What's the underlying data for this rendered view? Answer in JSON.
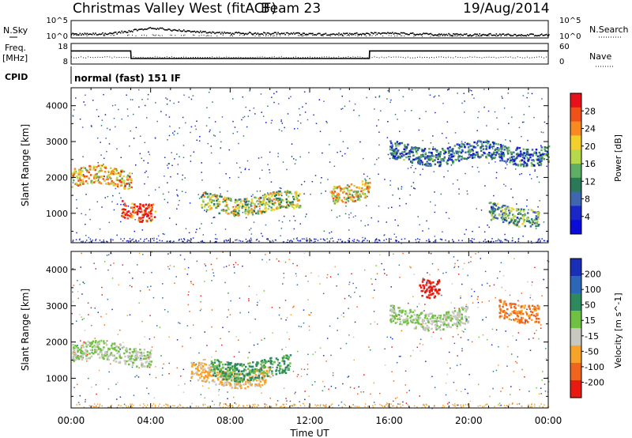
{
  "header": {
    "title": "Christmas Valley West (fitACF)",
    "beam": "Beam 23",
    "date": "19/Aug/2014"
  },
  "noise_panel": {
    "left_label": "N.Sky",
    "right_label": "N.Search",
    "left_ticks": [
      "10^5",
      "10^0"
    ],
    "right_ticks": [
      "10^5",
      "10^0"
    ]
  },
  "freq_panel": {
    "left_label_1": "Freq.",
    "left_label_2": "[MHz]",
    "right_label": "Nave",
    "left_ticks": [
      "18",
      "8"
    ],
    "right_ticks": [
      "60",
      "0"
    ]
  },
  "cpid": {
    "label": "CPID",
    "value": "normal (fast) 151 IF"
  },
  "colorbars": {
    "power": {
      "label": "Power [dB]",
      "ticks": [
        "28",
        "24",
        "20",
        "16",
        "12",
        "8",
        "4"
      ],
      "colors": [
        "#e8101a",
        "#f0501a",
        "#f78b22",
        "#f2cf2b",
        "#b7d84a",
        "#5fae66",
        "#2a7a5a",
        "#3f66b0",
        "#1a27c8",
        "#0b0bd8"
      ]
    },
    "velocity": {
      "label": "Velocity [m s^-1]",
      "ticks": [
        "200",
        "100",
        "50",
        "15",
        "-15",
        "-50",
        "-100",
        "-200"
      ],
      "colors": [
        "#1a2fb8",
        "#2c66b8",
        "#2d8a5f",
        "#70c044",
        "#c8c8c0",
        "#f8a22a",
        "#f0651e",
        "#e81a12"
      ]
    }
  },
  "chart_data": [
    {
      "type": "line",
      "title": "Christmas Valley West (fitACF) Beam 23 19/Aug/2014",
      "series": [
        {
          "name": "N.Sky",
          "x": [
            "00:00",
            "02:00",
            "04:00",
            "06:00",
            "08:00",
            "10:00",
            "12:00",
            "14:00",
            "16:00",
            "18:00",
            "20:00",
            "22:00",
            "24:00"
          ],
          "values": [
            1.2,
            1.4,
            3.0,
            2.0,
            1.5,
            1.5,
            1.3,
            1.3,
            1.5,
            1.2,
            1.1,
            1.1,
            1.0
          ]
        },
        {
          "name": "N.Search",
          "x": [
            "00:00",
            "04:00",
            "08:00",
            "12:00",
            "16:00",
            "20:00",
            "24:00"
          ],
          "values": [
            0.8,
            0.9,
            0.8,
            0.8,
            0.7,
            0.7,
            0.7
          ]
        }
      ],
      "yscale": "log",
      "ylim_left": [
        "10^0",
        "10^5"
      ]
    },
    {
      "type": "line",
      "series": [
        {
          "name": "Freq. [MHz]",
          "x": [
            "00:00",
            "03:00",
            "03:01",
            "15:00",
            "15:01",
            "24:00"
          ],
          "values": [
            14.5,
            14.5,
            10.5,
            10.5,
            14.5,
            14.5
          ]
        },
        {
          "name": "Nave",
          "x": [
            "00:00",
            "24:00"
          ],
          "values": [
            20,
            20
          ]
        }
      ],
      "ylim_left": [
        8,
        18
      ],
      "ylim_right": [
        0,
        60
      ]
    },
    {
      "type": "heatmap",
      "ylabel": "Slant Range [km]",
      "x_ticks": [
        "00:00",
        "04:00",
        "08:00",
        "12:00",
        "16:00",
        "20:00",
        "00:00"
      ],
      "y_ticks": [
        "1000",
        "2000",
        "3000",
        "4000"
      ],
      "xlim_hours": [
        0,
        24
      ],
      "ylim_km": [
        180,
        4500
      ],
      "colorbar": "Power [dB]",
      "features": [
        {
          "t_start": 0.0,
          "t_end": 3.0,
          "range_km": 2000,
          "power_db": 22
        },
        {
          "t_start": 2.5,
          "t_end": 4.2,
          "range_km": 1150,
          "power_db": 28
        },
        {
          "t_start": 6.5,
          "t_end": 11.5,
          "range_km": 1300,
          "power_db": 18
        },
        {
          "t_start": 13.0,
          "t_end": 15.0,
          "range_km": 1650,
          "power_db": 20
        },
        {
          "t_start": 16.0,
          "t_end": 24.0,
          "range_km": 2700,
          "power_db": 10
        },
        {
          "t_start": 21.0,
          "t_end": 23.5,
          "range_km": 1000,
          "power_db": 14
        }
      ]
    },
    {
      "type": "heatmap",
      "ylabel": "Slant Range [km]",
      "xlabel": "Time UT",
      "x_ticks": [
        "00:00",
        "04:00",
        "08:00",
        "12:00",
        "16:00",
        "20:00",
        "00:00"
      ],
      "y_ticks": [
        "1000",
        "2000",
        "3000",
        "4000"
      ],
      "xlim_hours": [
        0,
        24
      ],
      "ylim_km": [
        180,
        4500
      ],
      "colorbar": "Velocity [m s^-1]",
      "features": [
        {
          "t_start": 0.0,
          "t_end": 4.0,
          "range_km": 1700,
          "velocity": 0
        },
        {
          "t_start": 6.0,
          "t_end": 10.0,
          "range_km": 1100,
          "velocity": -40
        },
        {
          "t_start": 7.0,
          "t_end": 11.0,
          "range_km": 1300,
          "velocity": 40
        },
        {
          "t_start": 16.0,
          "t_end": 20.0,
          "range_km": 2700,
          "velocity": 0
        },
        {
          "t_start": 17.5,
          "t_end": 18.5,
          "range_km": 3600,
          "velocity": -200
        },
        {
          "t_start": 21.5,
          "t_end": 23.5,
          "range_km": 2900,
          "velocity": -80
        }
      ]
    }
  ]
}
